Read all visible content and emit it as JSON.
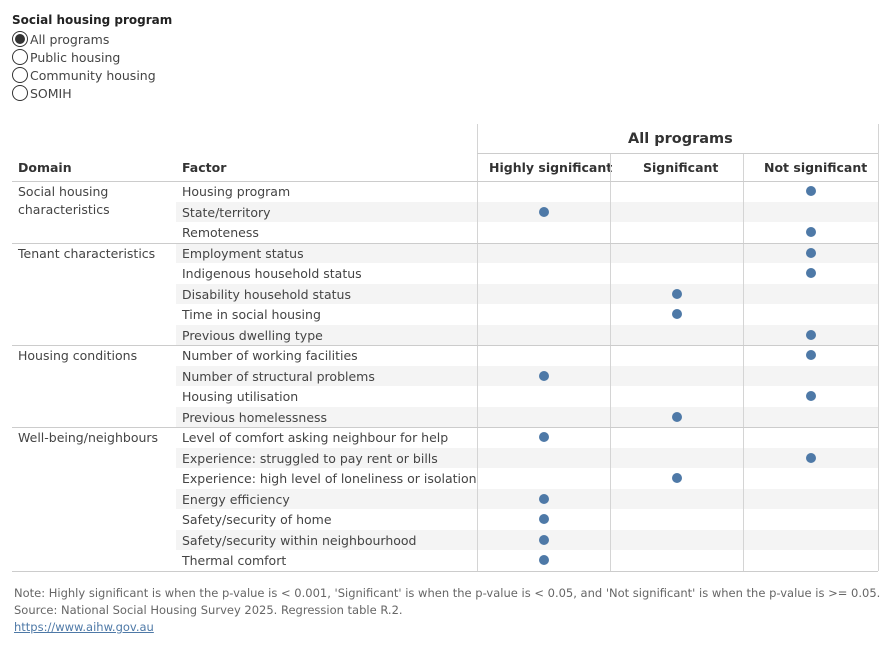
{
  "filter": {
    "title": "Social housing program",
    "options": [
      {
        "label": "All programs",
        "selected": true
      },
      {
        "label": "Public housing",
        "selected": false
      },
      {
        "label": "Community housing",
        "selected": false
      },
      {
        "label": "SOMIH",
        "selected": false
      }
    ]
  },
  "table": {
    "group_title": "All programs",
    "headers": {
      "domain": "Domain",
      "factor": "Factor",
      "columns": [
        "Highly significant",
        "Significant",
        "Not significant"
      ]
    },
    "domains": [
      {
        "label": "Social housing characteristics",
        "rows": [
          {
            "factor": "Housing program",
            "level": "Not significant"
          },
          {
            "factor": "State/territory",
            "level": "Highly significant"
          },
          {
            "factor": "Remoteness",
            "level": "Not significant"
          }
        ]
      },
      {
        "label": "Tenant characteristics",
        "rows": [
          {
            "factor": "Employment status",
            "level": "Not significant"
          },
          {
            "factor": "Indigenous household status",
            "level": "Not significant"
          },
          {
            "factor": "Disability household status",
            "level": "Significant"
          },
          {
            "factor": "Time in social housing",
            "level": "Significant"
          },
          {
            "factor": "Previous dwelling type",
            "level": "Not significant"
          }
        ]
      },
      {
        "label": "Housing conditions",
        "rows": [
          {
            "factor": "Number of working facilities",
            "level": "Not significant"
          },
          {
            "factor": "Number of structural problems",
            "level": "Highly significant"
          },
          {
            "factor": "Housing utilisation",
            "level": "Not significant"
          },
          {
            "factor": "Previous homelessness",
            "level": "Significant"
          }
        ]
      },
      {
        "label": "Well-being/neighbours",
        "rows": [
          {
            "factor": "Level of comfort asking neighbour for help",
            "level": "Highly significant"
          },
          {
            "factor": "Experience: struggled to pay rent or bills",
            "level": "Not significant"
          },
          {
            "factor": "Experience: high level of loneliness or isolation",
            "level": "Significant"
          },
          {
            "factor": "Energy efficiency",
            "level": "Highly significant"
          },
          {
            "factor": "Safety/security of home",
            "level": "Highly significant"
          },
          {
            "factor": "Safety/security within neighbourhood",
            "level": "Highly significant"
          },
          {
            "factor": "Thermal comfort",
            "level": "Highly significant"
          }
        ]
      }
    ]
  },
  "notes": {
    "line1": "Note: Highly significant is when the p-value is < 0.001, 'Significant' is when the p-value is < 0.05, and 'Not significant' is when the p-value is >= 0.05.",
    "line2": "Source: National Social Housing Survey 2025. Regression table R.2.",
    "link": "https://www.aihw.gov.au"
  },
  "colors": {
    "mark": "#4e79a7",
    "band": "#f4f4f4",
    "rule": "#cccccc"
  }
}
